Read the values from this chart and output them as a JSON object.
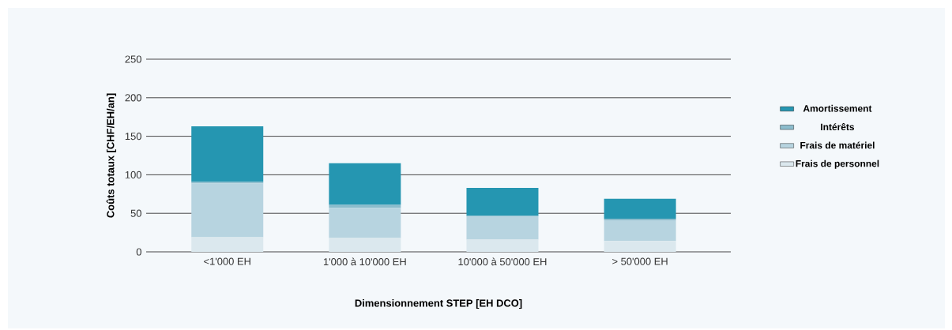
{
  "chart_data": {
    "type": "bar",
    "stacked": true,
    "xlabel": "Dimensionnement STEP [EH DCO]",
    "ylabel": "Coûts totaux [CHF/EH/an]",
    "categories": [
      "<1'000 EH",
      "1'000 à 10'000 EH",
      "10'000 à 50'000 EH",
      "> 50'000 EH"
    ],
    "series": [
      {
        "name": "Frais de personnel",
        "color": "#dbe8ee",
        "values": [
          19,
          18,
          16,
          14
        ]
      },
      {
        "name": "Frais de matériel",
        "color": "#b7d4e0",
        "values": [
          70,
          39,
          30,
          27
        ]
      },
      {
        "name": "Intérêts",
        "color": "#8bbccc",
        "values": [
          2,
          4,
          1,
          2
        ]
      },
      {
        "name": "Amortissement",
        "color": "#2596b1",
        "values": [
          72,
          54,
          36,
          26
        ]
      }
    ],
    "ylim": [
      0,
      250
    ],
    "yticks": [
      0,
      50,
      100,
      150,
      200,
      250
    ],
    "grid": "y",
    "legend": "right"
  }
}
